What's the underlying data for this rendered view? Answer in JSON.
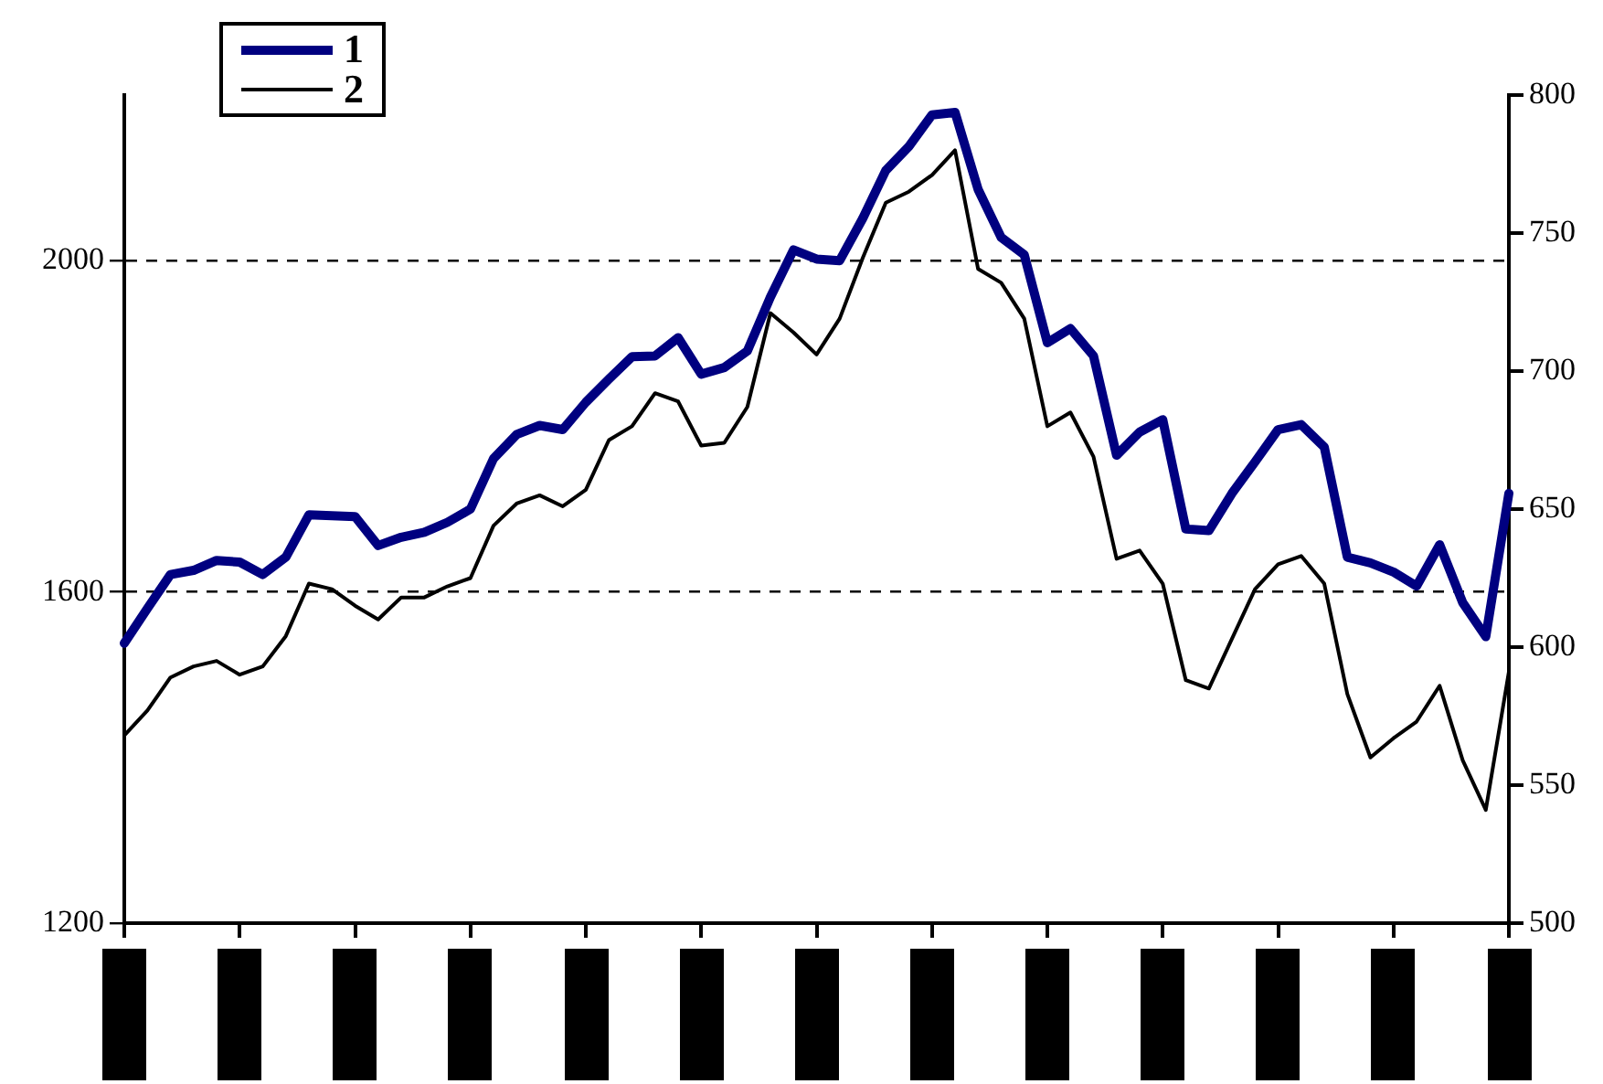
{
  "chart_data": {
    "type": "line",
    "legend": "top left",
    "grid": "y",
    "line_style": "solid",
    "marker": "none",
    "tick_labels": "y",
    "categories": [
      null,
      null,
      null,
      null,
      null,
      null,
      null,
      null,
      null,
      null,
      null,
      null,
      null,
      null,
      null,
      null,
      null,
      null,
      null,
      null,
      null,
      null,
      null,
      null,
      null,
      null,
      null,
      null,
      null,
      null,
      null,
      null,
      null,
      null,
      null,
      null,
      null,
      null,
      null,
      null,
      null,
      null,
      null,
      null,
      null,
      null,
      null,
      null,
      null,
      null,
      null,
      null,
      null,
      null,
      null,
      null,
      null,
      null,
      null,
      null,
      null
    ],
    "ylim": [
      1200,
      2200
    ],
    "yticks": [
      1200,
      1600,
      2000
    ],
    "y2lim": [
      500,
      800
    ],
    "y2ticks": [
      500,
      550,
      600,
      650,
      700,
      750,
      800
    ],
    "series": [
      {
        "name": "1",
        "color": "#000080",
        "values": [
          1538,
          1580,
          1621,
          1626,
          1638,
          1636,
          1621,
          1642,
          1693,
          1692,
          1691,
          1656,
          1666,
          1672,
          1684,
          1700,
          1761,
          1790,
          1801,
          1796,
          1829,
          1857,
          1884,
          1885,
          1907,
          1863,
          1871,
          1891,
          1956,
          2013,
          2002,
          2000,
          2051,
          2109,
          2138,
          2176,
          2179,
          2086,
          2028,
          2007,
          1901,
          1918,
          1885,
          1765,
          1793,
          1808,
          1676,
          1674,
          1719,
          1757,
          1796,
          1802,
          1775,
          1642,
          1635,
          1624,
          1607,
          1657,
          1587,
          1546,
          1719
        ]
      },
      {
        "name": "2",
        "color": "#000000",
        "axis": "y2",
        "values": [
          568,
          577,
          589,
          593,
          595,
          590,
          593,
          604,
          623,
          621,
          615,
          610,
          618,
          618,
          622,
          625,
          644,
          652,
          655,
          651,
          657,
          675,
          680,
          692,
          689,
          673,
          674,
          687,
          721,
          714,
          706,
          719,
          741,
          761,
          765,
          771,
          780,
          737,
          732,
          719,
          680,
          685,
          669,
          632,
          635,
          623,
          588,
          585,
          603,
          621,
          630,
          633,
          623,
          583,
          560,
          567,
          573,
          586,
          559,
          541,
          591
        ]
      }
    ]
  }
}
